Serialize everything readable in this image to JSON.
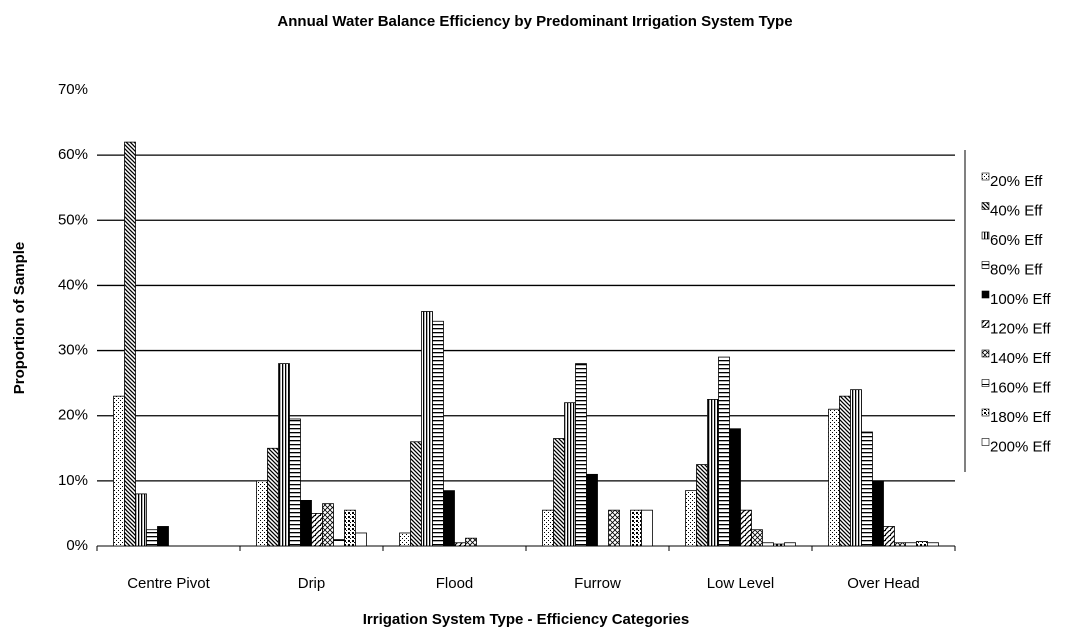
{
  "chart_data": {
    "type": "bar",
    "title": "Annual Water Balance Efficiency by Predominant Irrigation System Type",
    "x_label": "Irrigation System Type - Efficiency Categories",
    "y_label": "Proportion of Sample",
    "categories": [
      "Centre Pivot",
      "Drip",
      "Flood",
      "Furrow",
      "Low Level",
      "Over Head"
    ],
    "series": [
      {
        "name": "20% Eff",
        "color": "#000000",
        "values": [
          23,
          10,
          2,
          5.5,
          8.5,
          21
        ]
      },
      {
        "name": "40% Eff",
        "color": "#000000",
        "values": [
          62,
          15,
          16,
          16.5,
          12.5,
          23
        ]
      },
      {
        "name": "60% Eff",
        "color": "#000000",
        "values": [
          8,
          28,
          36,
          22,
          22.5,
          24
        ]
      },
      {
        "name": "80% Eff",
        "color": "#000000",
        "values": [
          2.5,
          19.5,
          34.5,
          28,
          29,
          17.5
        ]
      },
      {
        "name": "100% Eff",
        "color": "#000000",
        "values": [
          3,
          7,
          8.5,
          11,
          18,
          10
        ]
      },
      {
        "name": "120% Eff",
        "color": "#000000",
        "values": [
          0,
          5,
          0.5,
          0,
          5.5,
          3
        ]
      },
      {
        "name": "140% Eff",
        "color": "#000000",
        "values": [
          0,
          6.5,
          1.2,
          5.5,
          2.5,
          0.5
        ]
      },
      {
        "name": "160% Eff",
        "color": "#000000",
        "values": [
          0,
          1,
          0,
          0,
          0.5,
          0.5
        ]
      },
      {
        "name": "180% Eff",
        "color": "#000000",
        "values": [
          0,
          5.5,
          0,
          5.5,
          0.3,
          0.7
        ]
      },
      {
        "name": "200% Eff",
        "color": "#000000",
        "values": [
          0,
          2,
          0,
          5.5,
          0.5,
          0.5
        ]
      }
    ],
    "ylim": [
      0,
      70
    ],
    "yticks": [
      {
        "value": 0,
        "label": "0%"
      },
      {
        "value": 10,
        "label": "10%"
      },
      {
        "value": 20,
        "label": "20%"
      },
      {
        "value": 30,
        "label": "30%"
      },
      {
        "value": 40,
        "label": "40%"
      },
      {
        "value": 50,
        "label": "50%"
      },
      {
        "value": 60,
        "label": "60%"
      },
      {
        "value": 70,
        "label": "70%"
      }
    ],
    "grid": true,
    "legend": "right"
  }
}
